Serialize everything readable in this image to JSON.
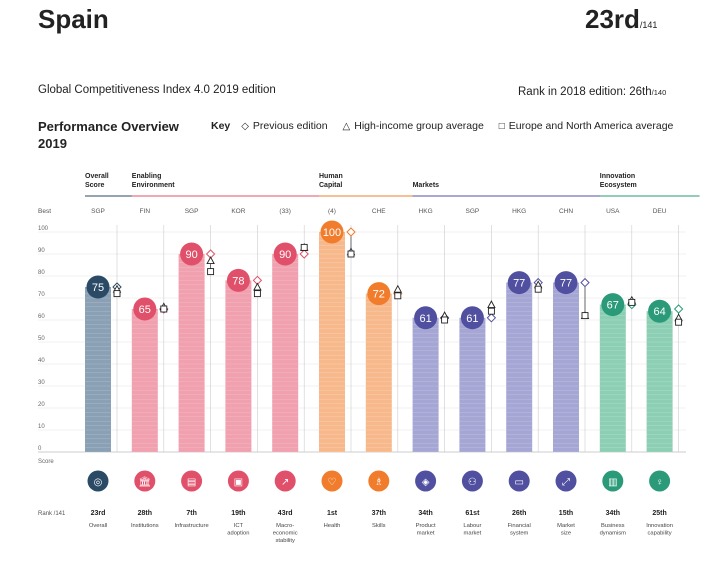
{
  "header": {
    "country": "Spain",
    "rank": "23rd",
    "rank_of": "/141",
    "edition": "Global Competitiveness Index 4.0 2019 edition",
    "rank_2018_label": "Rank in 2018 edition: 26th",
    "rank_2018_of": "/140"
  },
  "overview": {
    "title_line1": "Performance Overview",
    "title_line2": "2019"
  },
  "key": {
    "label": "Key",
    "previous": "Previous edition",
    "high_income": "High-income group average",
    "europe": "Europe and North America average"
  },
  "labels": {
    "best": "Best",
    "score": "Score",
    "rank_label": "Rank /141"
  },
  "colors": {
    "overall": "#2b4a66",
    "enabling": "#e0506a",
    "human": "#f07c2c",
    "markets": "#5150a0",
    "innovation": "#2a9a78"
  },
  "chart_data": {
    "type": "bar",
    "ylim": [
      0,
      100
    ],
    "yticks": [
      0,
      10,
      20,
      30,
      40,
      50,
      60,
      70,
      80,
      90,
      100
    ],
    "groups": [
      {
        "name": "Overall Score",
        "color": "#2b4a66",
        "pillars": [
          0
        ]
      },
      {
        "name": "Enabling Environment",
        "color": "#e0506a",
        "pillars": [
          1,
          2,
          3,
          4
        ]
      },
      {
        "name": "Human Capital",
        "color": "#f07c2c",
        "pillars": [
          5,
          6
        ]
      },
      {
        "name": "Markets",
        "color": "#5150a0",
        "pillars": [
          7,
          8,
          9,
          10
        ]
      },
      {
        "name": "Innovation Ecosystem",
        "color": "#2a9a78",
        "pillars": [
          11,
          12
        ]
      }
    ],
    "pillars": [
      {
        "name": "Overall",
        "best": "SGP",
        "score": 75,
        "previous": 75,
        "high_income": 74,
        "europe": 72,
        "rank": "23rd",
        "color": "#2b4a66",
        "bar_color": "#8aa0b4",
        "icon": "overall-icon",
        "glyph": "◎"
      },
      {
        "name": "Institutions",
        "best": "FIN",
        "score": 65,
        "previous": 65,
        "high_income": 66,
        "europe": 65,
        "rank": "28th",
        "color": "#e0506a",
        "bar_color": "#f0a0ae",
        "icon": "institutions-icon",
        "glyph": "🏛"
      },
      {
        "name": "Infrastructure",
        "best": "SGP",
        "score": 90,
        "previous": 90,
        "high_income": 87,
        "europe": 82,
        "rank": "7th",
        "color": "#e0506a",
        "bar_color": "#f0a0ae",
        "icon": "infrastructure-icon",
        "glyph": "▤"
      },
      {
        "name": "ICT adoption",
        "best": "KOR",
        "score": 78,
        "previous": 78,
        "high_income": 75,
        "europe": 72,
        "rank": "19th",
        "color": "#e0506a",
        "bar_color": "#f0a0ae",
        "icon": "ict-adoption-icon",
        "glyph": "▣"
      },
      {
        "name": "Macro-economic stability",
        "best": "(33)",
        "score": 90,
        "previous": 90,
        "high_income": 93,
        "europe": 93,
        "rank": "43rd",
        "color": "#e0506a",
        "bar_color": "#f0a0ae",
        "icon": "macroeconomic-stability-icon",
        "glyph": "↗"
      },
      {
        "name": "Health",
        "best": "(4)",
        "score": 100,
        "previous": 100,
        "high_income": 91,
        "europe": 90,
        "rank": "1st",
        "color": "#f07c2c",
        "bar_color": "#f7b98c",
        "icon": "health-icon",
        "glyph": "♡"
      },
      {
        "name": "Skills",
        "best": "CHE",
        "score": 72,
        "previous": 72,
        "high_income": 74,
        "europe": 71,
        "rank": "37th",
        "color": "#f07c2c",
        "bar_color": "#f7b98c",
        "icon": "skills-icon",
        "glyph": "♗"
      },
      {
        "name": "Product market",
        "best": "HKG",
        "score": 61,
        "previous": 61,
        "high_income": 62,
        "europe": 60,
        "rank": "34th",
        "color": "#5150a0",
        "bar_color": "#a5a6d4",
        "icon": "product-market-icon",
        "glyph": "◈"
      },
      {
        "name": "Labour market",
        "best": "SGP",
        "score": 61,
        "previous": 61,
        "high_income": 67,
        "europe": 64,
        "rank": "61st",
        "color": "#5150a0",
        "bar_color": "#a5a6d4",
        "icon": "labour-market-icon",
        "glyph": "⚇"
      },
      {
        "name": "Financial system",
        "best": "HKG",
        "score": 77,
        "previous": 77,
        "high_income": 76,
        "europe": 74,
        "rank": "26th",
        "color": "#5150a0",
        "bar_color": "#a5a6d4",
        "icon": "financial-system-icon",
        "glyph": "▭"
      },
      {
        "name": "Market size",
        "best": "CHN",
        "score": 77,
        "previous": 77,
        "high_income": 62,
        "europe": 62,
        "rank": "15th",
        "color": "#5150a0",
        "bar_color": "#a5a6d4",
        "icon": "market-size-icon",
        "glyph": "⤢"
      },
      {
        "name": "Business dynamism",
        "best": "USA",
        "score": 67,
        "previous": 67,
        "high_income": 69,
        "europe": 68,
        "rank": "34th",
        "color": "#2a9a78",
        "bar_color": "#8dcfb5",
        "icon": "business-dynamism-icon",
        "glyph": "▥"
      },
      {
        "name": "Innovation capability",
        "best": "DEU",
        "score": 64,
        "previous": 65,
        "high_income": 61,
        "europe": 59,
        "rank": "25th",
        "color": "#2a9a78",
        "bar_color": "#8dcfb5",
        "icon": "innovation-capability-icon",
        "glyph": "♀"
      }
    ],
    "pillar_label_lines": [
      [
        "Overall"
      ],
      [
        "Institutions"
      ],
      [
        "Infrastructure"
      ],
      [
        "ICT",
        "adoption"
      ],
      [
        "Macro-",
        "economic",
        "stability"
      ],
      [
        "Health"
      ],
      [
        "Skills"
      ],
      [
        "Product",
        "market"
      ],
      [
        "Labour",
        "market"
      ],
      [
        "Financial",
        "system"
      ],
      [
        "Market",
        "size"
      ],
      [
        "Business",
        "dynamism"
      ],
      [
        "Innovation",
        "capability"
      ]
    ],
    "group_label_lines": [
      [
        "Overall",
        "Score"
      ],
      [
        "Enabling",
        "Environment"
      ],
      [
        "Human",
        "Capital"
      ],
      [
        "Markets"
      ],
      [
        "Innovation",
        "Ecosystem"
      ]
    ]
  }
}
